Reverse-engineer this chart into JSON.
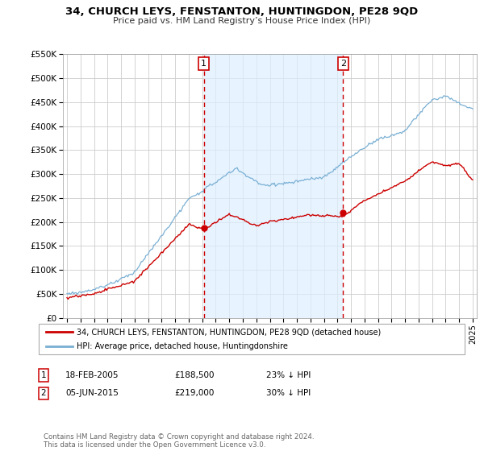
{
  "title": "34, CHURCH LEYS, FENSTANTON, HUNTINGDON, PE28 9QD",
  "subtitle": "Price paid vs. HM Land Registry’s House Price Index (HPI)",
  "legend_label_red": "34, CHURCH LEYS, FENSTANTON, HUNTINGDON, PE28 9QD (detached house)",
  "legend_label_blue": "HPI: Average price, detached house, Huntingdonshire",
  "annotation1_date": "18-FEB-2005",
  "annotation1_price": "£188,500",
  "annotation1_hpi": "23% ↓ HPI",
  "annotation2_date": "05-JUN-2015",
  "annotation2_price": "£219,000",
  "annotation2_hpi": "30% ↓ HPI",
  "footer": "Contains HM Land Registry data © Crown copyright and database right 2024.\nThis data is licensed under the Open Government Licence v3.0.",
  "red_color": "#cc0000",
  "blue_color": "#7ab0d4",
  "shade_color": "#ddeeff",
  "marker1_x": 2005.12,
  "marker1_y": 188500,
  "marker2_x": 2015.42,
  "marker2_y": 219000,
  "ylim": [
    0,
    550000
  ],
  "xlim": [
    1994.7,
    2025.3
  ]
}
